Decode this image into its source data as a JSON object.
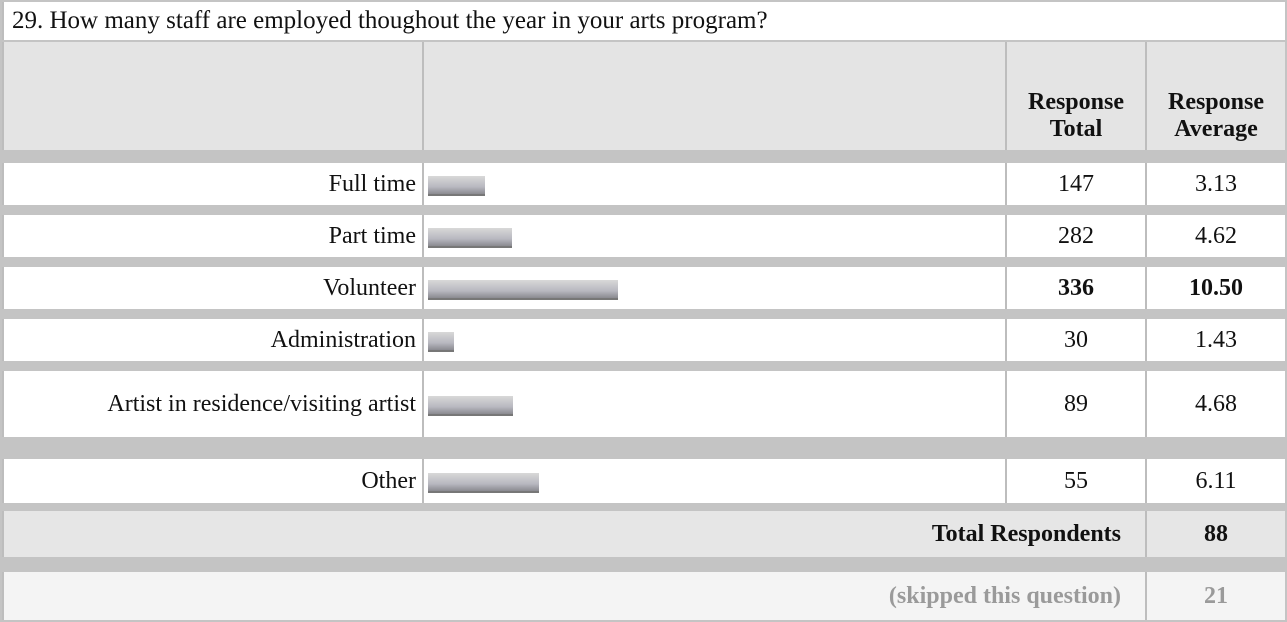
{
  "title": "29. How many staff are employed thoughout the year in your arts program?",
  "table": {
    "header": [
      "Response Total",
      "Response Average"
    ],
    "rows": [
      {
        "label": "Full time",
        "total": 147,
        "average": 3.13
      },
      {
        "label": "Part time",
        "total": 282,
        "average": 4.62
      },
      {
        "label": "Volunteer",
        "total": 336,
        "average": {
          "value": 10.5,
          "label": "10.50"
        },
        "bold": true
      },
      {
        "label": "Administration",
        "total": 30,
        "average": 1.43
      },
      {
        "label": "Artist in residence/visiting artist",
        "total": 89,
        "average": 4.68
      },
      {
        "label": "Other",
        "total": 55,
        "average": 6.11
      }
    ],
    "total_respondents": {
      "label": "Total Respondents",
      "value": 88
    },
    "skipped": {
      "label": "(skipped this question)",
      "value": 21
    }
  }
}
